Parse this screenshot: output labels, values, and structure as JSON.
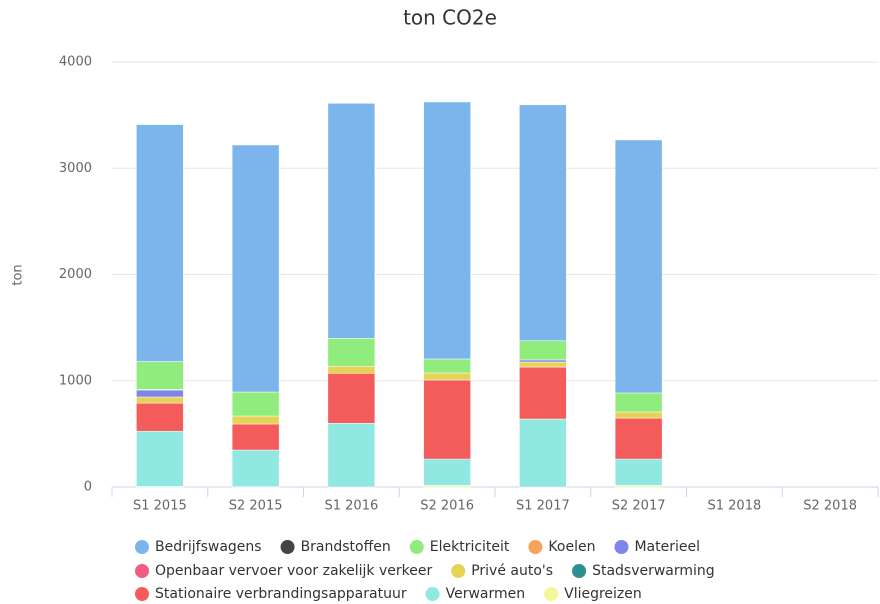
{
  "chart_data": {
    "type": "bar",
    "stacked": true,
    "title": "ton CO2e",
    "y_label": "ton",
    "categories": [
      "S1 2015",
      "S2 2015",
      "S1 2016",
      "S2 2016",
      "S1 2017",
      "S2 2017",
      "S1 2018",
      "S2 2018"
    ],
    "ylim": [
      0,
      4000
    ],
    "yticks": [
      0,
      1000,
      2000,
      3000,
      4000
    ],
    "grid": true,
    "series": [
      {
        "name": "Bedrijfswagens",
        "color": "#7cb5ec",
        "values": [
          2230,
          2325,
          2212,
          2419,
          2221,
          2381,
          null,
          null
        ]
      },
      {
        "name": "Brandstoffen",
        "color": "#434348",
        "values": [
          0,
          0,
          0,
          0,
          0,
          0,
          null,
          null
        ]
      },
      {
        "name": "Elektriciteit",
        "color": "#90ed7d",
        "values": [
          263,
          226,
          263,
          132,
          180,
          179,
          null,
          null
        ]
      },
      {
        "name": "Koelen",
        "color": "#f7a35c",
        "values": [
          5,
          0,
          0,
          0,
          0,
          0,
          null,
          null
        ]
      },
      {
        "name": "Materieel",
        "color": "#8085e9",
        "values": [
          66,
          0,
          0,
          0,
          20,
          0,
          null,
          null
        ]
      },
      {
        "name": "Openbaar vervoer voor zakelijk verkeer",
        "color": "#f15c80",
        "values": [
          0,
          0,
          0,
          0,
          0,
          0,
          null,
          null
        ]
      },
      {
        "name": "Privé auto's",
        "color": "#e4d354",
        "values": [
          57,
          75,
          66,
          66,
          47,
          57,
          null,
          null
        ]
      },
      {
        "name": "Stadsverwarming",
        "color": "#2b908f",
        "values": [
          0,
          0,
          0,
          0,
          0,
          0,
          null,
          null
        ]
      },
      {
        "name": "Stationaire verbrandingsapparatuur",
        "color": "#f45b5b",
        "values": [
          265,
          245,
          470,
          744,
          489,
          386,
          null,
          null
        ]
      },
      {
        "name": "Verwarmen",
        "color": "#91e8e1",
        "values": [
          520,
          345,
          600,
          248,
          640,
          248,
          null,
          null
        ]
      },
      {
        "name": "Vliegreizen",
        "color": "#f5f59a",
        "values": [
          5,
          3,
          0,
          15,
          0,
          15,
          null,
          null
        ]
      }
    ]
  }
}
